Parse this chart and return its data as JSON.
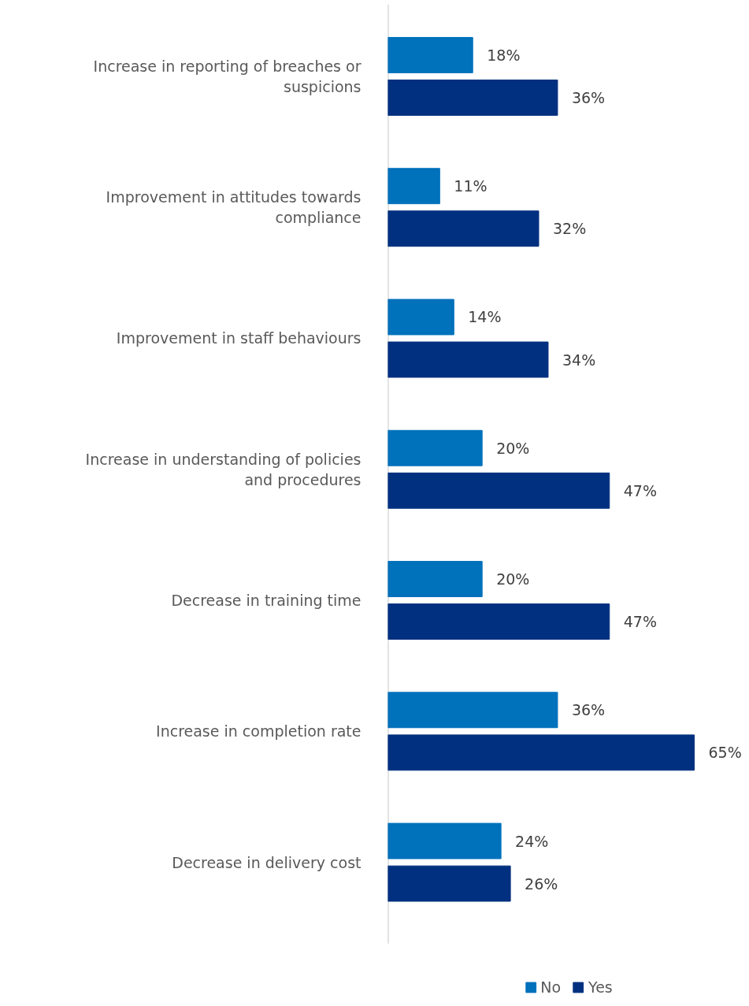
{
  "chart_data": {
    "type": "bar",
    "orientation": "horizontal",
    "categories": [
      "Increase in reporting of breaches or suspicions",
      "Improvement in attitudes towards compliance",
      "Improvement in staff behaviours",
      "Increase in understanding of policies and procedures",
      "Decrease in training time",
      "Increase in completion rate",
      "Decrease in delivery cost"
    ],
    "series": [
      {
        "name": "No",
        "color": "#0071bb",
        "values": [
          18,
          11,
          14,
          20,
          20,
          36,
          24
        ],
        "value_labels": [
          "18%",
          "11%",
          "14%",
          "20%",
          "20%",
          "36%",
          "24%"
        ]
      },
      {
        "name": "Yes",
        "color": "#00307f",
        "values": [
          36,
          32,
          34,
          47,
          47,
          65,
          26
        ],
        "value_labels": [
          "36%",
          "32%",
          "34%",
          "47%",
          "47%",
          "65%",
          "26%"
        ]
      }
    ],
    "legend": "bottom"
  }
}
